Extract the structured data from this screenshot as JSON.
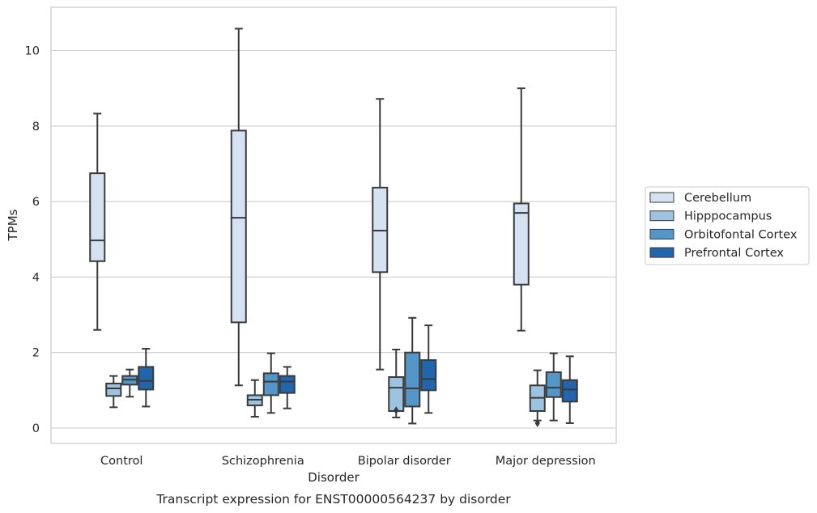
{
  "chart_data": {
    "type": "box",
    "caption": "Transcript expression for ENST00000564237 by disorder",
    "xlabel": "Disorder",
    "ylabel": "TPMs",
    "ylim": [
      -0.4,
      11.1
    ],
    "yticks": [
      0,
      2,
      4,
      6,
      8,
      10
    ],
    "grid": "horizontal",
    "legend_placement": "right",
    "categories": [
      "Control",
      "Schizophrenia",
      "Bipolar disorder",
      "Major depression"
    ],
    "series": [
      {
        "name": "Cerebellum",
        "color": "#d4e2f1",
        "boxes": [
          {
            "whisker_low": 2.6,
            "q1": 4.42,
            "median": 4.97,
            "q3": 6.75,
            "whisker_high": 8.33,
            "outliers": []
          },
          {
            "whisker_low": 1.13,
            "q1": 2.8,
            "median": 5.57,
            "q3": 7.88,
            "whisker_high": 10.58,
            "outliers": []
          },
          {
            "whisker_low": 1.55,
            "q1": 4.13,
            "median": 5.23,
            "q3": 6.37,
            "whisker_high": 8.72,
            "outliers": []
          },
          {
            "whisker_low": 2.58,
            "q1": 3.8,
            "median": 5.7,
            "q3": 5.95,
            "whisker_high": 9.0,
            "outliers": []
          }
        ]
      },
      {
        "name": "Hipppocampus",
        "color": "#9cc4e0",
        "boxes": [
          {
            "whisker_low": 0.55,
            "q1": 0.85,
            "median": 1.05,
            "q3": 1.18,
            "whisker_high": 1.38,
            "outliers": []
          },
          {
            "whisker_low": 0.3,
            "q1": 0.6,
            "median": 0.75,
            "q3": 0.87,
            "whisker_high": 1.27,
            "outliers": []
          },
          {
            "whisker_low": 0.28,
            "q1": 0.45,
            "median": 1.07,
            "q3": 1.35,
            "whisker_high": 2.08,
            "outliers": [
              0.47
            ]
          },
          {
            "whisker_low": 0.2,
            "q1": 0.45,
            "median": 0.8,
            "q3": 1.13,
            "whisker_high": 1.53,
            "outliers": [
              0.13
            ]
          }
        ]
      },
      {
        "name": "Orbitofontal Cortex",
        "color": "#5396c7",
        "boxes": [
          {
            "whisker_low": 0.83,
            "q1": 1.15,
            "median": 1.28,
            "q3": 1.38,
            "whisker_high": 1.55,
            "outliers": []
          },
          {
            "whisker_low": 0.4,
            "q1": 0.87,
            "median": 1.23,
            "q3": 1.45,
            "whisker_high": 1.98,
            "outliers": []
          },
          {
            "whisker_low": 0.12,
            "q1": 0.57,
            "median": 1.05,
            "q3": 2.0,
            "whisker_high": 2.92,
            "outliers": []
          },
          {
            "whisker_low": 0.2,
            "q1": 0.82,
            "median": 1.07,
            "q3": 1.48,
            "whisker_high": 1.98,
            "outliers": []
          }
        ]
      },
      {
        "name": "Prefrontal Cortex",
        "color": "#2166ac",
        "boxes": [
          {
            "whisker_low": 0.57,
            "q1": 1.02,
            "median": 1.25,
            "q3": 1.62,
            "whisker_high": 2.1,
            "outliers": []
          },
          {
            "whisker_low": 0.52,
            "q1": 0.93,
            "median": 1.23,
            "q3": 1.38,
            "whisker_high": 1.62,
            "outliers": []
          },
          {
            "whisker_low": 0.4,
            "q1": 1.0,
            "median": 1.3,
            "q3": 1.8,
            "whisker_high": 2.72,
            "outliers": []
          },
          {
            "whisker_low": 0.13,
            "q1": 0.7,
            "median": 1.02,
            "q3": 1.27,
            "whisker_high": 1.9,
            "outliers": []
          }
        ]
      }
    ]
  }
}
